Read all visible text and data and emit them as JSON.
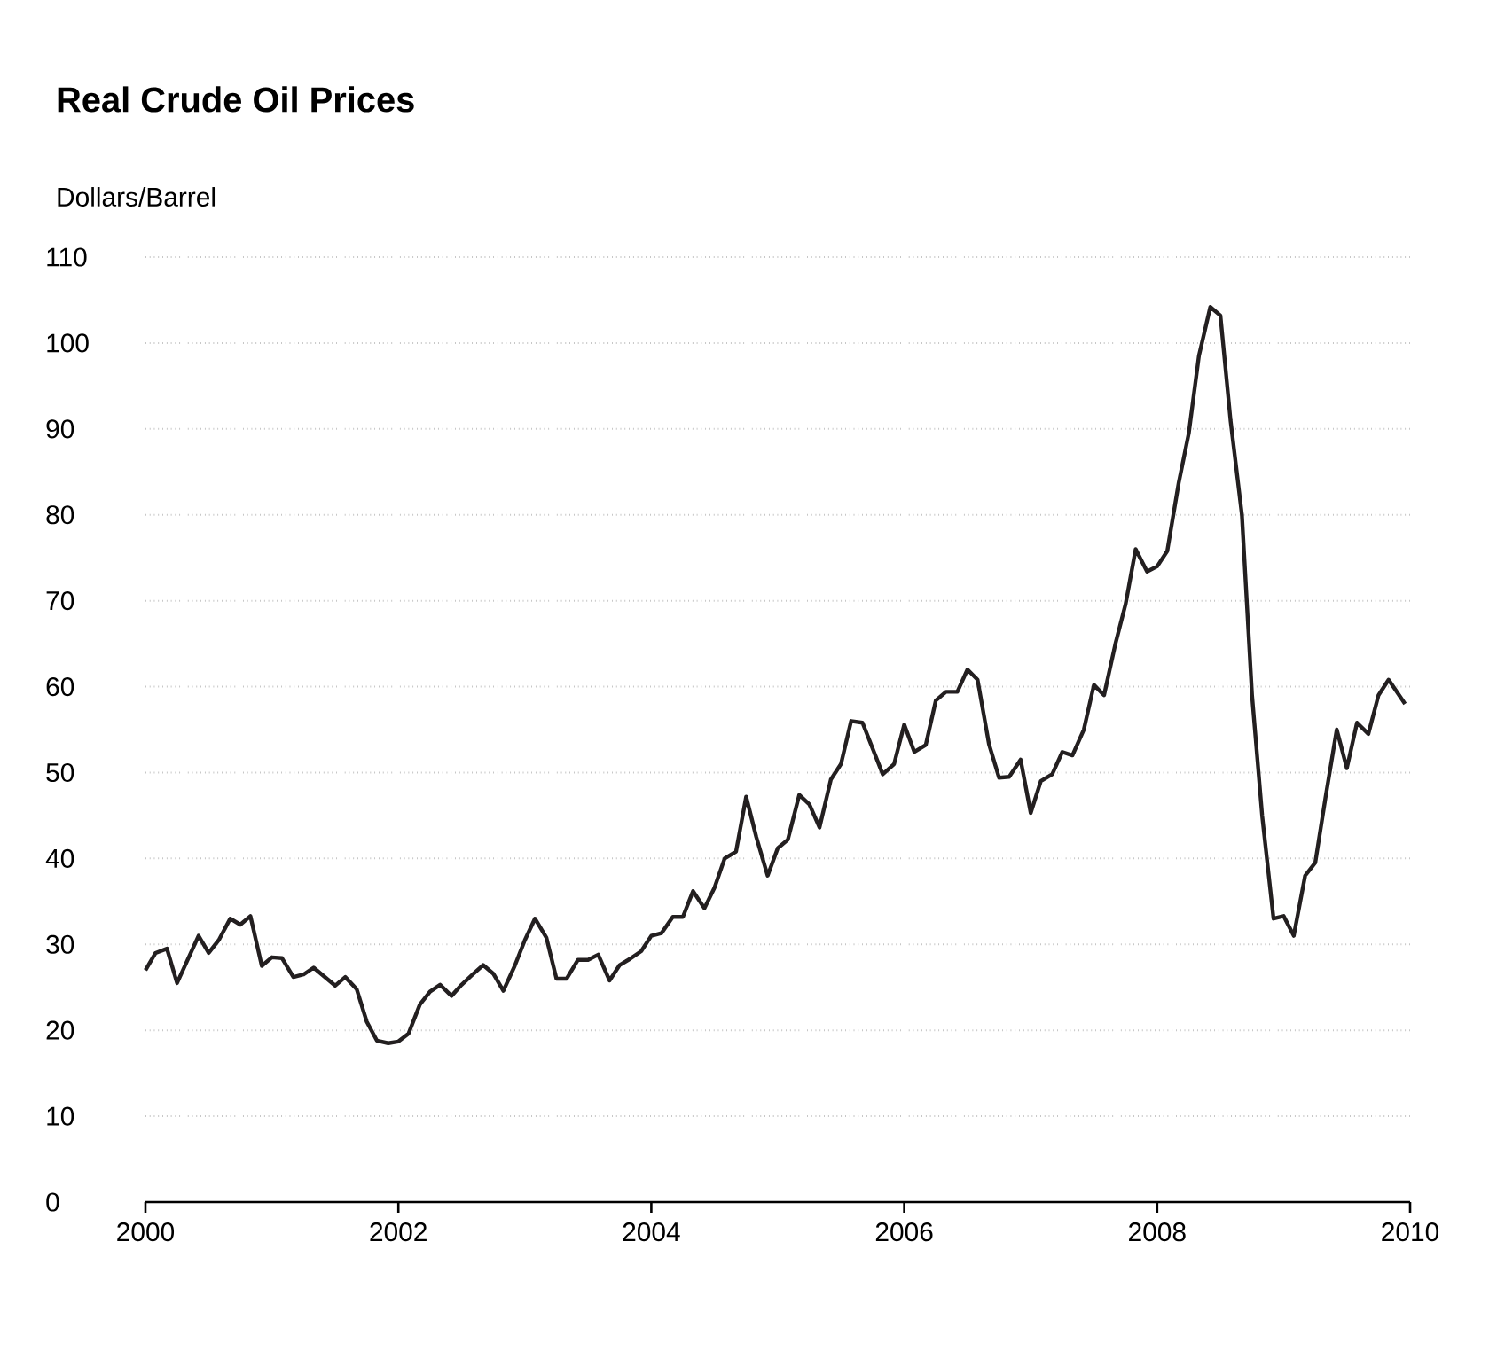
{
  "chart_data": {
    "type": "line",
    "title": "Real Crude Oil Prices",
    "ylabel": "Dollars/Barrel",
    "x": [
      2000.0,
      2000.08,
      2000.17,
      2000.25,
      2000.42,
      2000.5,
      2000.58,
      2000.67,
      2000.75,
      2000.83,
      2000.92,
      2001.0,
      2001.08,
      2001.17,
      2001.25,
      2001.33,
      2001.5,
      2001.58,
      2001.67,
      2001.75,
      2001.83,
      2001.92,
      2002.0,
      2002.08,
      2002.17,
      2002.25,
      2002.33,
      2002.42,
      2002.5,
      2002.58,
      2002.67,
      2002.75,
      2002.83,
      2002.92,
      2003.0,
      2003.08,
      2003.17,
      2003.25,
      2003.33,
      2003.42,
      2003.5,
      2003.58,
      2003.67,
      2003.75,
      2003.83,
      2003.92,
      2004.0,
      2004.08,
      2004.17,
      2004.25,
      2004.33,
      2004.42,
      2004.5,
      2004.58,
      2004.67,
      2004.75,
      2004.83,
      2004.92,
      2005.0,
      2005.08,
      2005.17,
      2005.25,
      2005.33,
      2005.42,
      2005.5,
      2005.58,
      2005.67,
      2005.83,
      2005.92,
      2006.0,
      2006.08,
      2006.17,
      2006.25,
      2006.33,
      2006.42,
      2006.5,
      2006.58,
      2006.67,
      2006.75,
      2006.83,
      2006.92,
      2007.0,
      2007.08,
      2007.17,
      2007.25,
      2007.33,
      2007.42,
      2007.5,
      2007.58,
      2007.67,
      2007.75,
      2007.83,
      2007.92,
      2008.0,
      2008.08,
      2008.17,
      2008.25,
      2008.33,
      2008.42,
      2008.5,
      2008.58,
      2008.67,
      2008.75,
      2008.83,
      2008.92,
      2009.0,
      2009.08,
      2009.17,
      2009.25,
      2009.33,
      2009.42,
      2009.5,
      2009.58,
      2009.67,
      2009.75,
      2009.83,
      2009.96
    ],
    "series": [
      {
        "color": "#231f20",
        "values": [
          27,
          29,
          29.5,
          25.5,
          31,
          29,
          30.5,
          33,
          32.3,
          33.3,
          27.5,
          28.5,
          28.4,
          26.2,
          26.5,
          27.3,
          25.2,
          26.2,
          24.8,
          21,
          18.8,
          18.5,
          18.7,
          19.6,
          23,
          24.5,
          25.3,
          24,
          25.3,
          26.4,
          27.6,
          26.6,
          24.6,
          27.5,
          30.5,
          33,
          30.8,
          26,
          26,
          28.2,
          28.2,
          28.8,
          25.8,
          27.6,
          28.3,
          29.2,
          31,
          31.3,
          33.2,
          33.2,
          36.2,
          34.2,
          36.6,
          40,
          40.8,
          47.2,
          42.5,
          38,
          41.2,
          42.2,
          47.4,
          46.3,
          43.6,
          49.2,
          51,
          56,
          55.8,
          49.8,
          51,
          55.6,
          52.4,
          53.2,
          58.4,
          59.4,
          59.4,
          62,
          60.8,
          53.3,
          49.4,
          49.5,
          51.5,
          45.3,
          49,
          49.8,
          52.4,
          52,
          55,
          60.2,
          59,
          65,
          69.6,
          76,
          73.4,
          74,
          75.8,
          83.7,
          89.5,
          98.5,
          104.2,
          103.2,
          91,
          80,
          59,
          45,
          33,
          33.3,
          31,
          38,
          39.5,
          47,
          55,
          50.5,
          55.8,
          54.5,
          59,
          60.8,
          58
        ]
      }
    ],
    "xlim": [
      2000,
      2010
    ],
    "ylim": [
      0,
      110
    ],
    "xticks": [
      2000,
      2002,
      2004,
      2006,
      2008,
      2010
    ],
    "yticks": [
      0,
      10,
      20,
      30,
      40,
      50,
      60,
      70,
      80,
      90,
      100,
      110
    ],
    "grid": "y"
  }
}
